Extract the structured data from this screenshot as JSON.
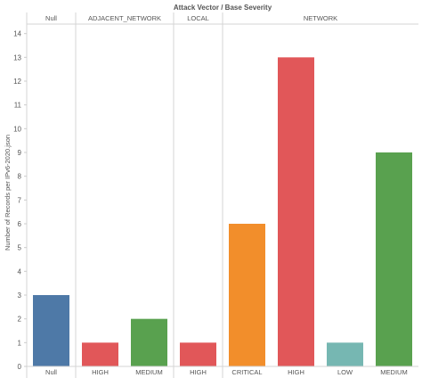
{
  "chart_data": {
    "type": "bar",
    "title": "Attack Vector  /  Base Severity",
    "ylabel": "Number of Records per IPv6-2020.json",
    "xlabel": "",
    "ylim": [
      0,
      14.4
    ],
    "yticks": [
      0,
      1,
      2,
      3,
      4,
      5,
      6,
      7,
      8,
      9,
      10,
      11,
      12,
      13,
      14
    ],
    "grid": false,
    "groups": [
      {
        "name": "Null",
        "bars": [
          {
            "label": "Null",
            "value": 3,
            "color": "#4e79a7"
          }
        ]
      },
      {
        "name": "ADJACENT_NETWORK",
        "bars": [
          {
            "label": "HIGH",
            "value": 1,
            "color": "#e15759"
          },
          {
            "label": "MEDIUM",
            "value": 2,
            "color": "#59a14f"
          }
        ]
      },
      {
        "name": "LOCAL",
        "bars": [
          {
            "label": "HIGH",
            "value": 1,
            "color": "#e15759"
          }
        ]
      },
      {
        "name": "NETWORK",
        "bars": [
          {
            "label": "CRITICAL",
            "value": 6,
            "color": "#f28e2b"
          },
          {
            "label": "HIGH",
            "value": 13,
            "color": "#e15759"
          },
          {
            "label": "LOW",
            "value": 1,
            "color": "#76b7b2"
          },
          {
            "label": "MEDIUM",
            "value": 9,
            "color": "#59a14f"
          }
        ]
      }
    ]
  }
}
